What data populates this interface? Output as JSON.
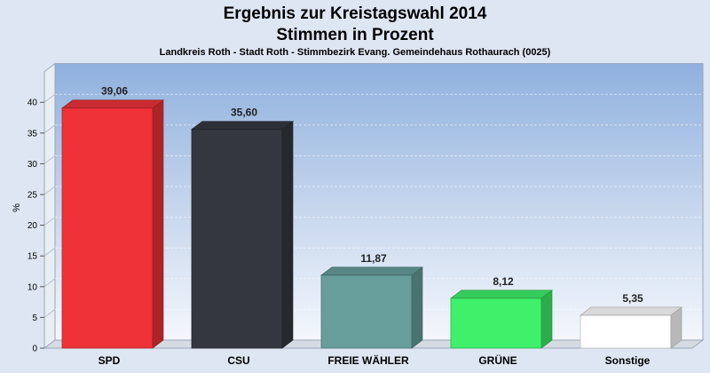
{
  "header": {
    "title_line1": "Ergebnis zur Kreistagswahl 2014",
    "title_line2": "Stimmen in Prozent",
    "subtitle": "Landkreis Roth - Stadt Roth - Stimmbezirk Evang. Gemeindehaus Rothaurach (0025)"
  },
  "chart_data": {
    "type": "bar",
    "title": "Ergebnis zur Kreistagswahl 2014",
    "subtitle": "Stimmen in Prozent",
    "ylabel": "%",
    "xlabel": "",
    "ylim": [
      0,
      45
    ],
    "yticks": [
      0,
      5,
      10,
      15,
      20,
      25,
      30,
      35,
      40
    ],
    "grid": true,
    "categories": [
      "SPD",
      "CSU",
      "FREIE WÄHLER",
      "GRÜNE",
      "Sonstige"
    ],
    "values": [
      39.06,
      35.6,
      11.87,
      8.12,
      5.35
    ],
    "value_labels": [
      "39,06",
      "35,60",
      "11,87",
      "8,12",
      "5,35"
    ],
    "colors": [
      "#ee3238",
      "#34373f",
      "#679e9c",
      "#3ff06a",
      "#ffffff"
    ]
  }
}
